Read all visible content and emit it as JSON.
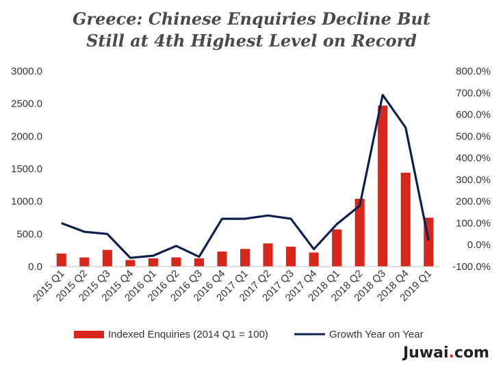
{
  "chart_data": {
    "type": "bar",
    "title_line1": "Greece: Chinese Enquiries Decline But",
    "title_line2": "Still at 4th Highest Level on Record",
    "categories": [
      "2015 Q1",
      "2015 Q2",
      "2015 Q3",
      "2015 Q4",
      "2016 Q1",
      "2016 Q2",
      "2016 Q3",
      "2016 Q4",
      "2017 Q1",
      "2017 Q2",
      "2017 Q3",
      "2017 Q4",
      "2018 Q1",
      "2018 Q2",
      "2018 Q3",
      "2018 Q4",
      "2019 Q1"
    ],
    "series": [
      {
        "name": "Indexed Enquiries (2014 Q1 = 100)",
        "type": "bar",
        "axis": "left",
        "color": "#d7261c",
        "values": [
          200,
          140,
          255,
          100,
          125,
          140,
          125,
          230,
          270,
          355,
          305,
          215,
          570,
          1040,
          2470,
          1440,
          750
        ]
      },
      {
        "name": "Growth Year on Year",
        "type": "line",
        "axis": "right",
        "color": "#0d1f4e",
        "values": [
          100,
          60,
          50,
          -60,
          -50,
          -5,
          -55,
          120,
          120,
          135,
          120,
          -20,
          95,
          180,
          690,
          540,
          20
        ]
      }
    ],
    "left_axis": {
      "ylim": [
        0,
        3000
      ],
      "ticks": [
        "0.0",
        "500.0",
        "1000.0",
        "1500.0",
        "2000.0",
        "2500.0",
        "3000.0"
      ],
      "values": [
        0,
        500,
        1000,
        1500,
        2000,
        2500,
        3000
      ]
    },
    "right_axis": {
      "ylim": [
        -100,
        800
      ],
      "ticks": [
        "-100.0%",
        "0.0%",
        "100.0%",
        "200.0%",
        "300.0%",
        "400.0%",
        "500.0%",
        "600.0%",
        "700.0%",
        "800.0%"
      ],
      "values": [
        -100,
        0,
        100,
        200,
        300,
        400,
        500,
        600,
        700,
        800
      ]
    },
    "grid": false,
    "legend_position": "bottom"
  },
  "brand": {
    "name": "Juwai",
    "dot": ".",
    "tld": "com"
  }
}
